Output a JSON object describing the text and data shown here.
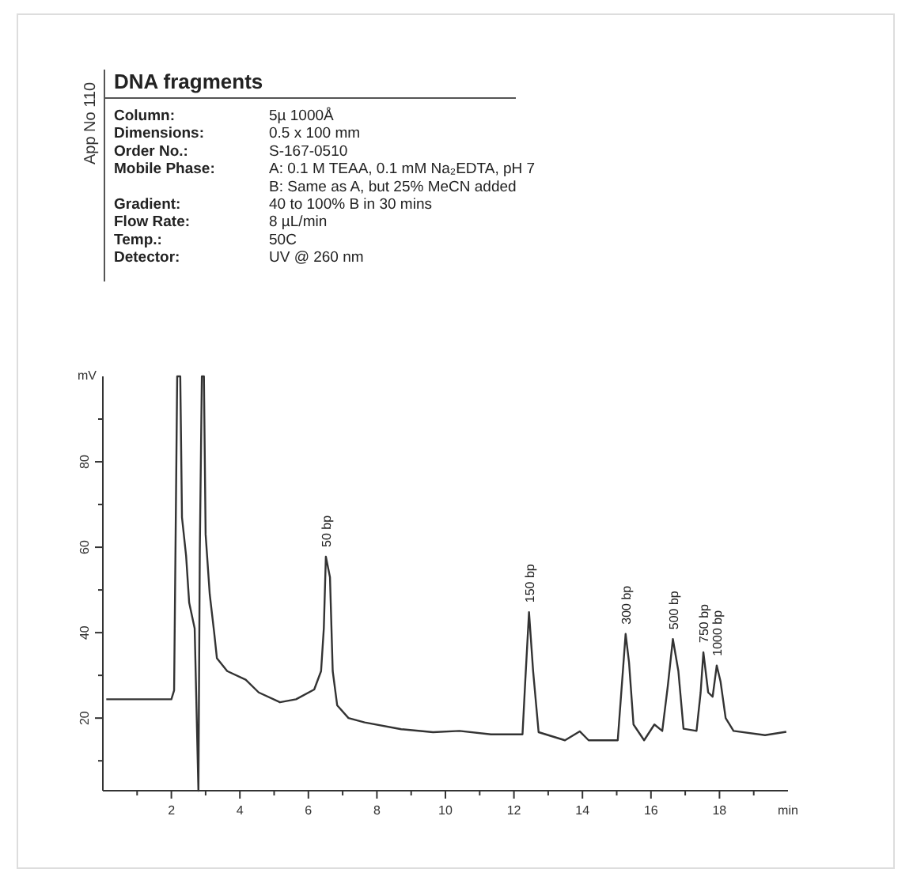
{
  "chart_data": {
    "type": "line",
    "title": "DNA fragments",
    "ylabel": "mV",
    "xlabel": "min",
    "xlim": [
      0,
      20
    ],
    "ylim": [
      3,
      100
    ],
    "xticks": [
      {
        "value": 1,
        "label": null
      },
      2,
      {
        "value": 3,
        "label": null
      },
      4,
      {
        "value": 5,
        "label": null
      },
      6,
      {
        "value": 7,
        "label": null
      },
      8,
      {
        "value": 9,
        "label": null
      },
      10,
      {
        "value": 11,
        "label": null
      },
      12,
      {
        "value": 13,
        "label": null
      },
      14,
      {
        "value": 15,
        "label": null
      },
      16,
      {
        "value": 17,
        "label": null
      },
      18,
      {
        "value": 19,
        "label": null
      }
    ],
    "yticks": [
      {
        "value": 10,
        "label": null
      },
      20,
      {
        "value": 30,
        "label": null
      },
      40,
      {
        "value": 50,
        "label": null
      },
      60,
      {
        "value": 70,
        "label": null
      },
      80,
      {
        "value": 90,
        "label": null
      }
    ],
    "grid": false,
    "marker": "none",
    "line_style": "solid",
    "series": [
      {
        "color": "#333333",
        "x": [
          0.1,
          1.0,
          2.0,
          2.08,
          2.17,
          2.26,
          2.31,
          2.43,
          2.52,
          2.68,
          2.79,
          2.83,
          2.89,
          2.95,
          3.0,
          3.12,
          3.25,
          3.33,
          3.63,
          4.17,
          4.55,
          5.17,
          5.64,
          6.17,
          6.37,
          6.45,
          6.51,
          6.63,
          6.71,
          6.84,
          7.17,
          7.64,
          8.71,
          9.64,
          10.41,
          11.33,
          12.25,
          12.33,
          12.44,
          12.56,
          12.72,
          13.49,
          13.92,
          14.18,
          15.03,
          15.18,
          15.26,
          15.36,
          15.49,
          15.8,
          16.1,
          16.33,
          16.49,
          16.64,
          16.8,
          16.95,
          17.33,
          17.45,
          17.53,
          17.67,
          17.8,
          17.92,
          18.03,
          18.18,
          18.41,
          19.33,
          19.95
        ],
        "values": [
          24.4,
          24.4,
          24.4,
          26.5,
          100,
          100,
          67,
          58,
          47,
          41,
          3,
          59,
          100,
          100,
          63,
          49,
          40,
          34,
          31,
          29,
          26,
          23.7,
          24.4,
          26.7,
          31,
          41,
          57.8,
          53,
          31,
          23,
          20,
          19,
          17.4,
          16.7,
          17,
          16.2,
          16.2,
          28.6,
          44.8,
          31,
          16.7,
          14.8,
          16.9,
          14.8,
          14.8,
          31,
          39.7,
          33,
          18.5,
          14.8,
          18.5,
          17,
          27.4,
          38.5,
          31,
          17.5,
          17,
          26,
          35.4,
          26,
          25,
          32.3,
          28.6,
          20,
          17,
          16,
          16.8
        ]
      }
    ],
    "annotations": [
      "App No 110",
      "Column:",
      "5µ 1000Å",
      "Dimensions:",
      "0.5 x 100 mm",
      "Order No.:",
      "S-167-0510",
      "Mobile Phase:",
      "A: 0.1 M TEAA, 0.1 mM Na₂EDTA, pH 7\nB: Same as A, but 25% MeCN added",
      "Gradient:",
      "40 to 100% B in 30 mins",
      "Flow Rate:",
      "8 µL/min",
      "Temp.:",
      "50C",
      "Detector:",
      "UV @ 260 nm",
      {
        "text": "50 bp",
        "x": 6.51,
        "y": 57.8
      },
      {
        "text": "150 bp",
        "x": 12.44,
        "y": 44.8
      },
      {
        "text": "300 bp",
        "x": 15.26,
        "y": 39.7
      },
      {
        "text": "500 bp",
        "x": 16.64,
        "y": 38.5
      },
      {
        "text": "750 bp",
        "x": 17.53,
        "y": 35.4
      },
      {
        "text": "1000 bp",
        "x": 17.92,
        "y": 32.3
      }
    ]
  }
}
